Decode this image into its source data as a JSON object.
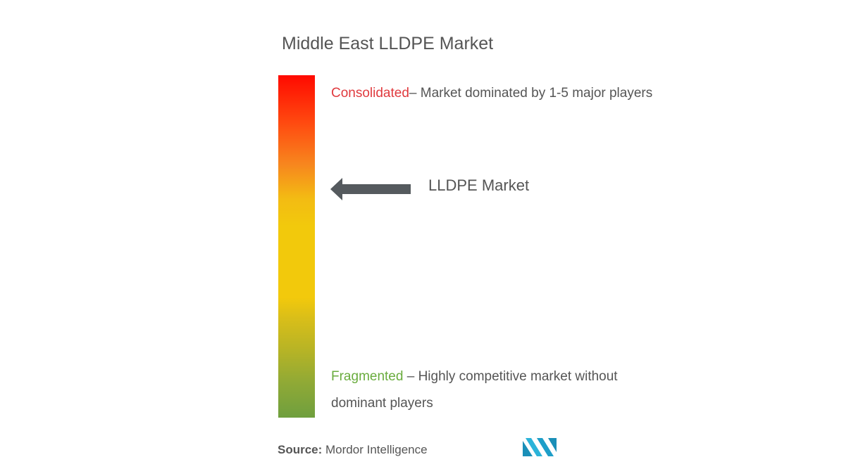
{
  "title": "Middle East LLDPE Market",
  "scale": {
    "top": {
      "label": "Consolidated",
      "description": "– Market dominated by 1-5 major players"
    },
    "bottom": {
      "label": "Fragmented",
      "description": " – Highly competitive market without dominant players"
    },
    "colors": {
      "top": "#ff0a00",
      "middle": "#f2c90c",
      "bottom": "#6f9f3e"
    }
  },
  "marker": {
    "label": "LLDPE Market",
    "icon": "left-arrow-icon",
    "color": "#555a5e"
  },
  "source": {
    "label": "Source:",
    "value": " Mordor Intelligence"
  },
  "logo": {
    "icon": "mordor-intelligence-logo",
    "color": "#1e9ec8"
  }
}
